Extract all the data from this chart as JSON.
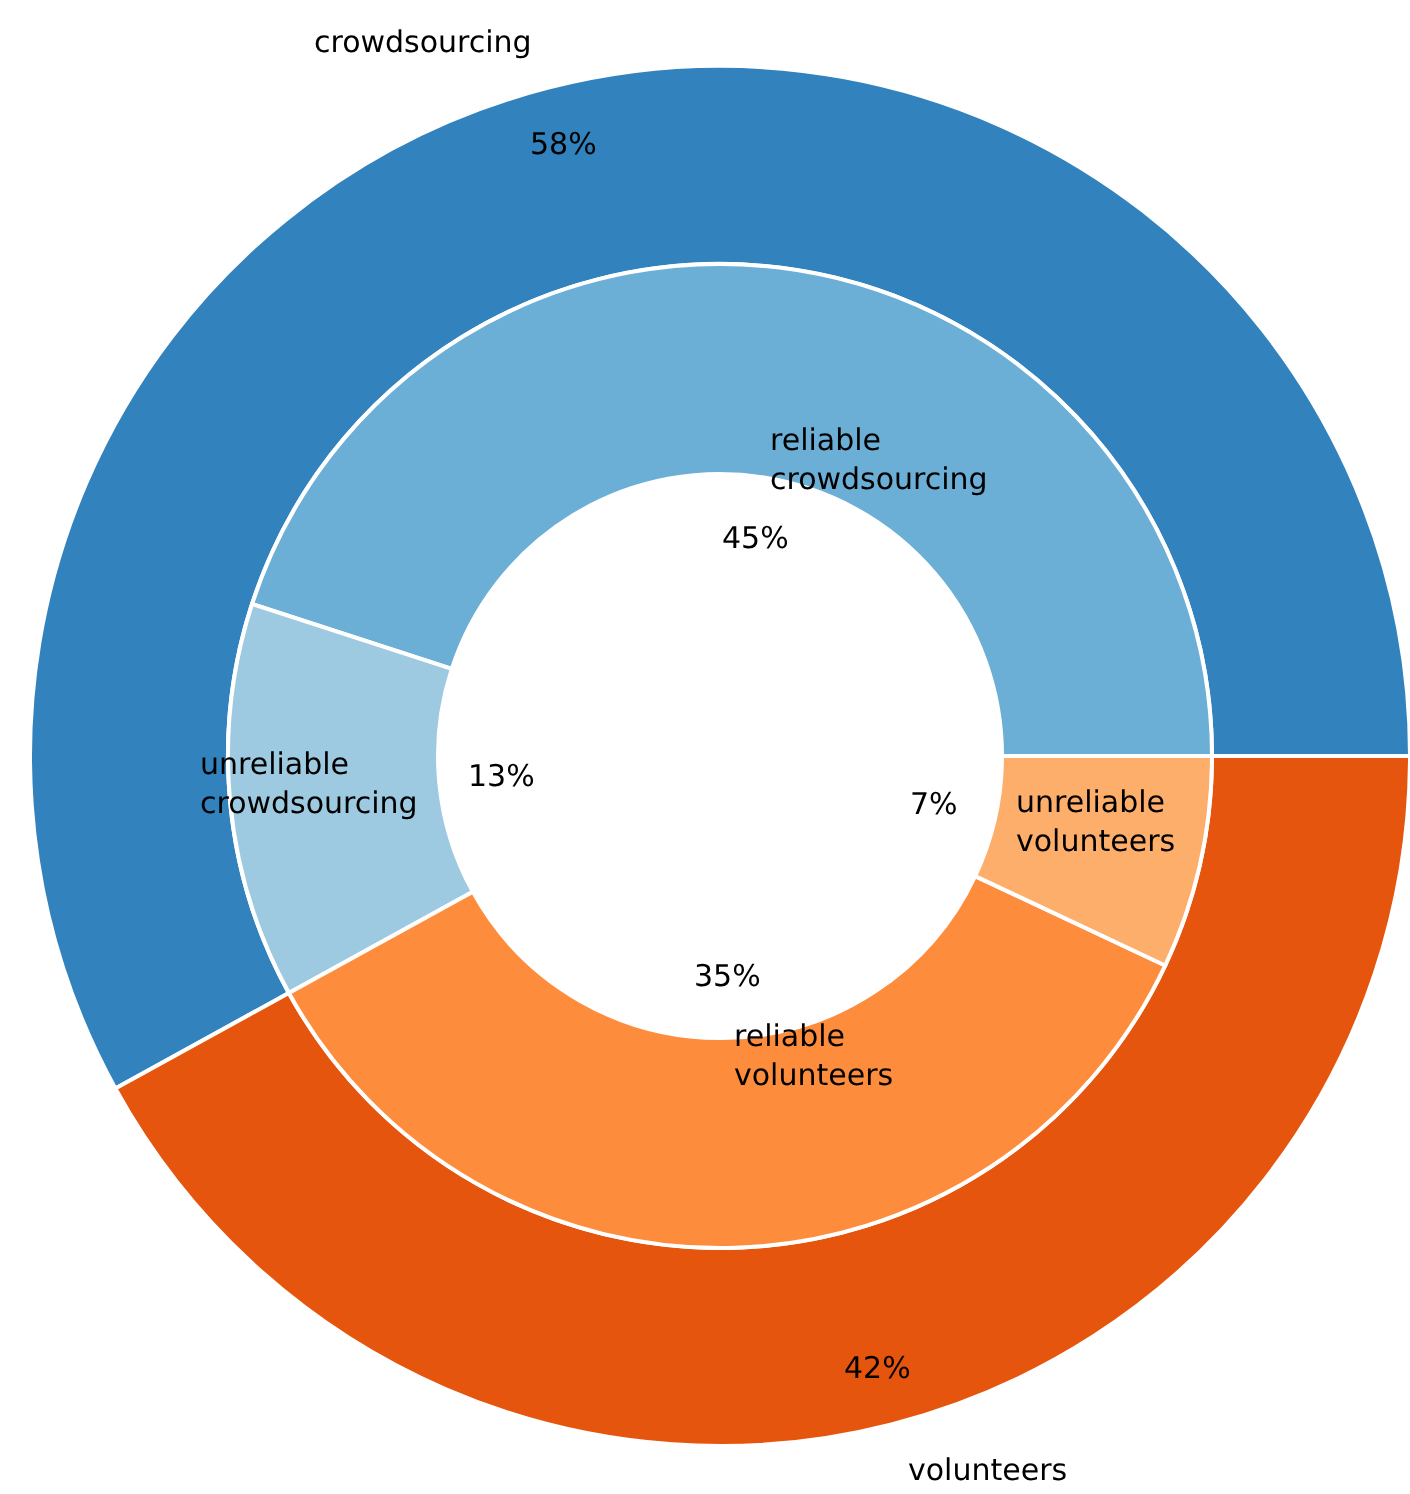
{
  "chart_data": [
    {
      "type": "donut",
      "categories": [
        "crowdsourcing",
        "volunteers"
      ],
      "values": [
        58,
        42
      ],
      "value_labels": [
        "58%",
        "42%"
      ],
      "colors": [
        "#3182bd",
        "#e6550d"
      ]
    },
    {
      "type": "donut",
      "categories": [
        "reliable crowdsourcing",
        "unreliable crowdsourcing",
        "reliable volunteers",
        "unreliable volunteers"
      ],
      "values": [
        45,
        13,
        35,
        7
      ],
      "value_labels": [
        "45%",
        "13%",
        "35%",
        "7%"
      ],
      "colors": [
        "#6baed6",
        "#9ecae1",
        "#fd8d3c",
        "#fdae6b"
      ]
    }
  ]
}
